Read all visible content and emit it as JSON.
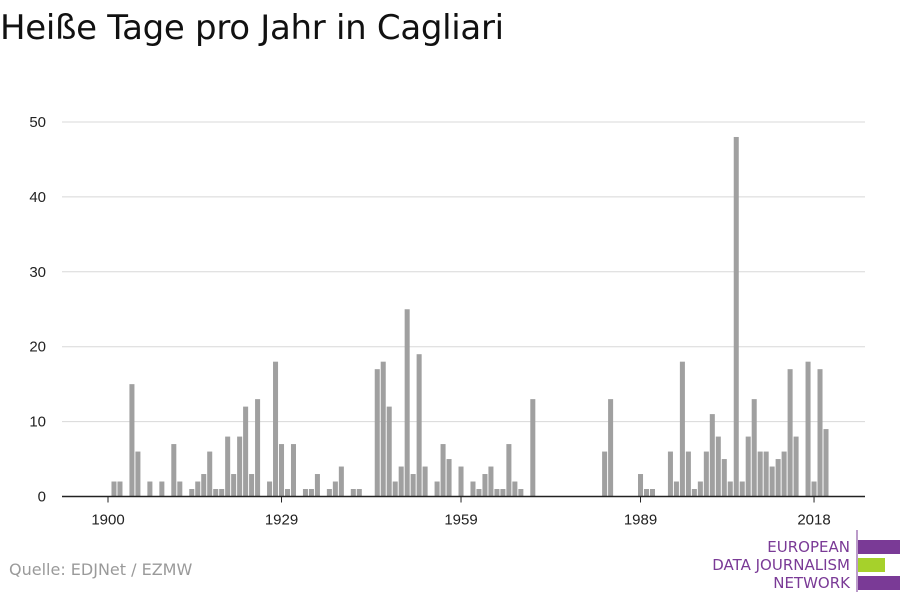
{
  "title": "Heiße Tage pro Jahr in Cagliari",
  "source": "Quelle: EDJNet / EZMW",
  "logo": {
    "lines": [
      "EUROPEAN",
      "DATA JOURNALISM",
      "NETWORK"
    ]
  },
  "colors": {
    "bar": "#a0a0a0",
    "grid": "#d8d8d8",
    "axis": "#222222",
    "logo_purple": "#7a3a96",
    "logo_green": "#a6d12b"
  },
  "chart_data": {
    "type": "bar",
    "title": "Heiße Tage pro Jahr in Cagliari",
    "xlabel": "",
    "ylabel": "",
    "ylim": [
      0,
      50
    ],
    "yticks": [
      0,
      10,
      20,
      30,
      40,
      50
    ],
    "xlim": [
      1900,
      2018
    ],
    "xticks": [
      1900,
      1929,
      1959,
      1989,
      2018
    ],
    "grid": true,
    "start_year": 1900,
    "values": [
      0,
      2,
      2,
      0,
      15,
      6,
      0,
      2,
      0,
      2,
      0,
      7,
      2,
      0,
      1,
      2,
      3,
      6,
      1,
      1,
      8,
      3,
      8,
      12,
      3,
      13,
      0,
      2,
      18,
      7,
      1,
      7,
      0,
      1,
      1,
      3,
      0,
      1,
      2,
      4,
      0,
      1,
      1,
      0,
      0,
      17,
      18,
      12,
      2,
      4,
      25,
      3,
      19,
      4,
      0,
      2,
      7,
      5,
      0,
      4,
      0,
      2,
      1,
      3,
      4,
      1,
      1,
      7,
      2,
      1,
      0,
      13,
      0,
      0,
      0,
      0,
      0,
      0,
      0,
      0,
      0,
      0,
      0,
      6,
      13,
      0,
      0,
      0,
      0,
      3,
      1,
      1,
      0,
      0,
      6,
      2,
      18,
      6,
      1,
      2,
      6,
      11,
      8,
      5,
      2,
      48,
      2,
      8,
      13,
      6,
      6,
      4,
      5,
      6,
      17,
      8,
      0,
      18,
      2,
      17,
      9
    ]
  }
}
